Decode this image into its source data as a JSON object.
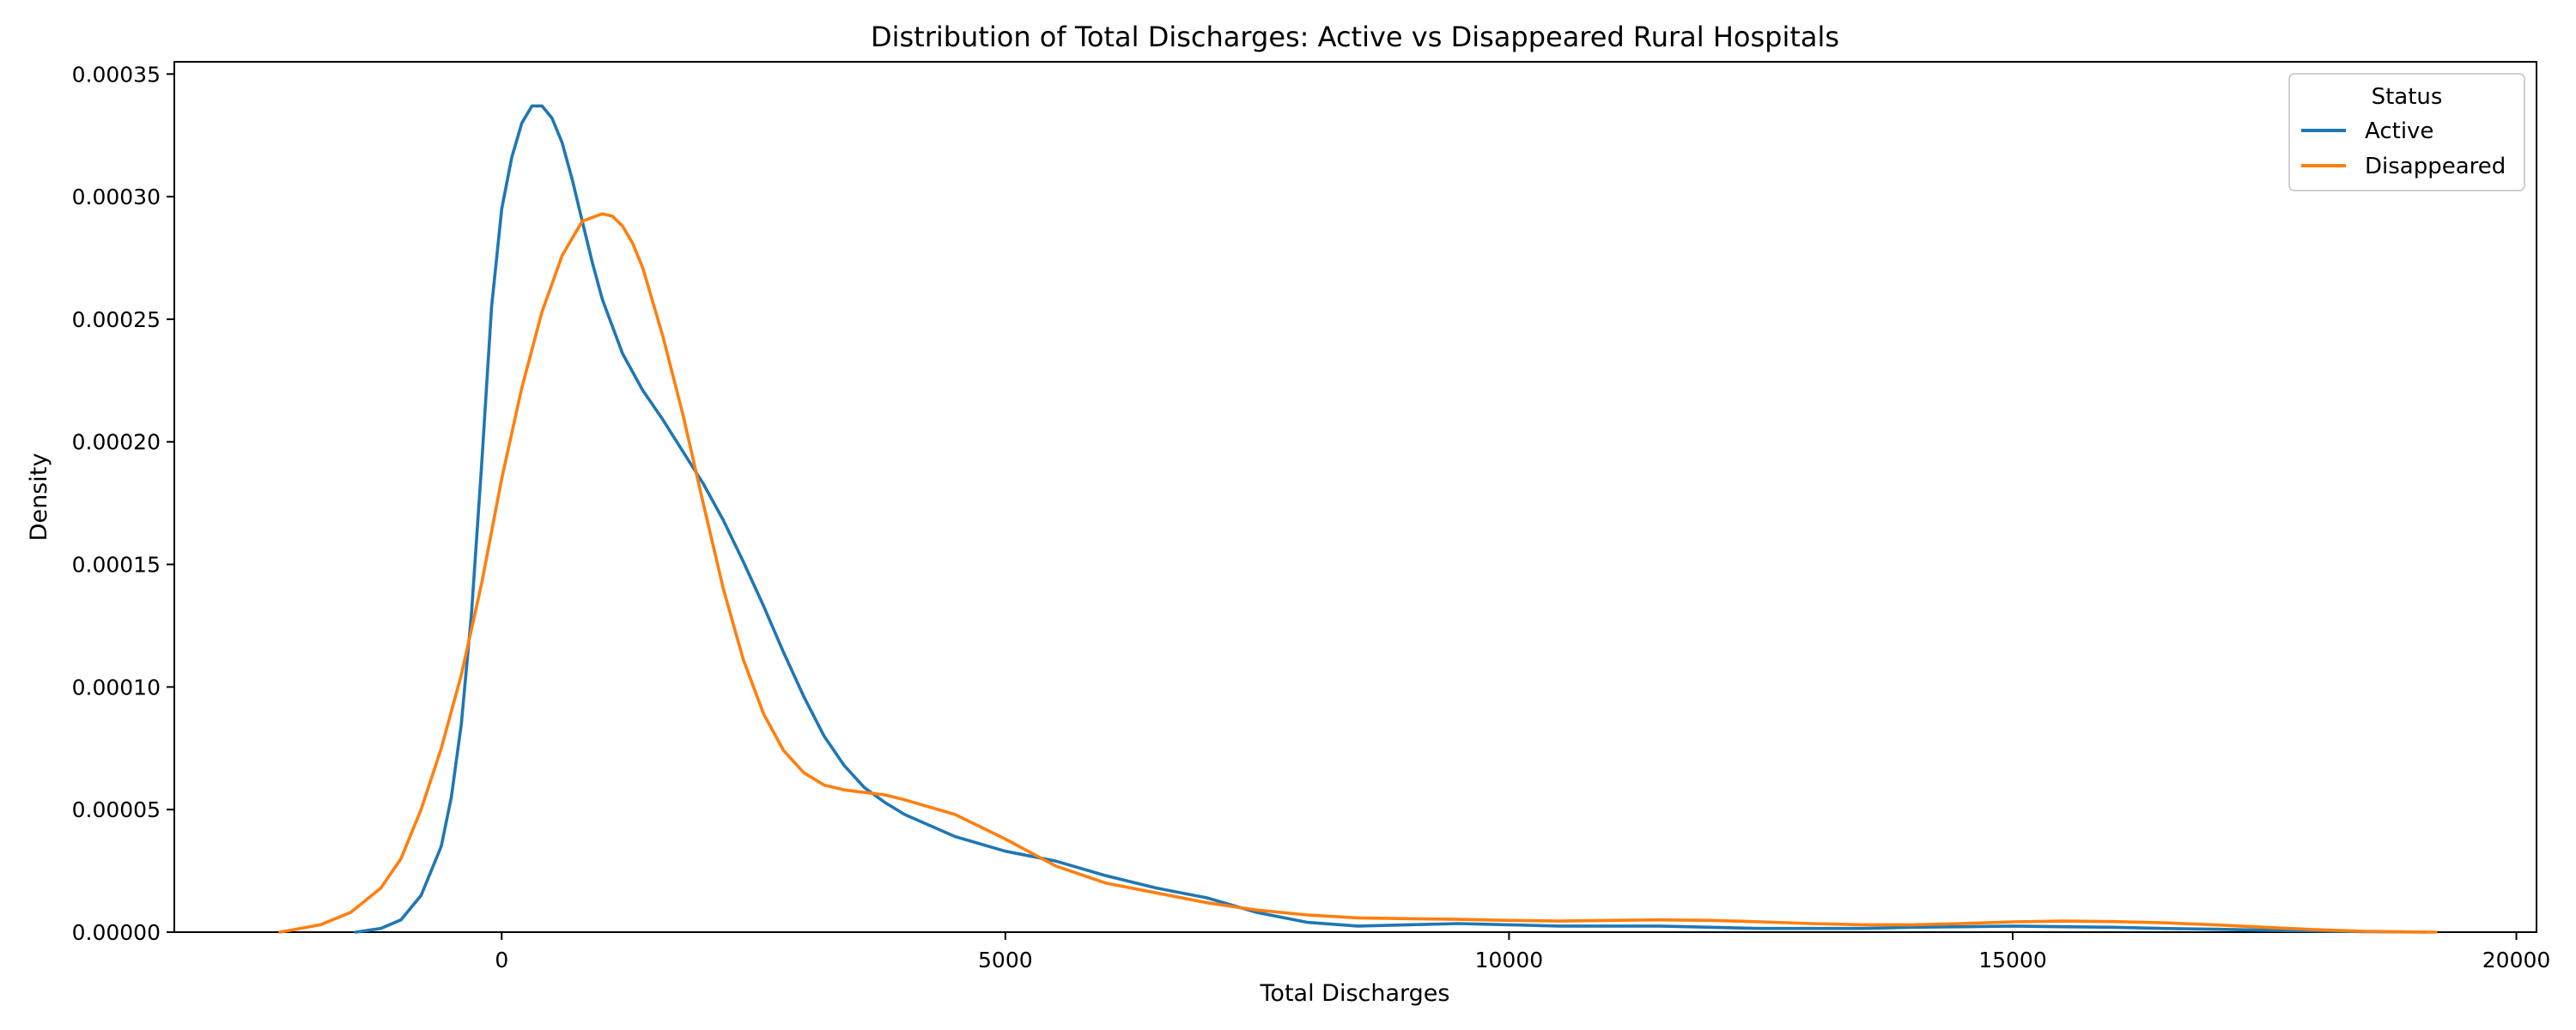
{
  "chart_data": {
    "type": "line",
    "title": "Distribution of Total Discharges: Active vs Disappeared Rural Hospitals",
    "xlabel": "Total Discharges",
    "ylabel": "Density",
    "xlim": [
      -3250,
      20200
    ],
    "ylim": [
      0,
      0.000355
    ],
    "xticks": [
      0,
      5000,
      10000,
      15000,
      20000
    ],
    "xtick_labels": [
      "0",
      "5000",
      "10000",
      "15000",
      "20000"
    ],
    "yticks": [
      0,
      5e-05,
      0.0001,
      0.00015,
      0.0002,
      0.00025,
      0.0003,
      0.00035
    ],
    "ytick_labels": [
      "0.00000",
      "0.00005",
      "0.00010",
      "0.00015",
      "0.00020",
      "0.00025",
      "0.00030",
      "0.00035"
    ],
    "grid": false,
    "legend": {
      "title": "Status",
      "position": "top-right"
    },
    "series": [
      {
        "name": "Active",
        "color": "#1f77b4",
        "x": [
          -1450,
          -1200,
          -1000,
          -800,
          -600,
          -500,
          -400,
          -300,
          -200,
          -100,
          0,
          100,
          200,
          300,
          400,
          500,
          600,
          700,
          800,
          900,
          1000,
          1200,
          1400,
          1600,
          1800,
          2000,
          2200,
          2400,
          2600,
          2800,
          3000,
          3200,
          3400,
          3600,
          3800,
          4000,
          4500,
          5000,
          5500,
          6000,
          6500,
          7000,
          7500,
          8000,
          8500,
          9000,
          9500,
          10000,
          10500,
          11000,
          11500,
          12000,
          12500,
          13000,
          13500,
          14000,
          14500,
          15000,
          15500,
          16000,
          16500,
          17000,
          17500,
          18000,
          18500,
          19100
        ],
        "y": [
          0,
          1.5e-06,
          5e-06,
          1.5e-05,
          3.5e-05,
          5.5e-05,
          8.5e-05,
          0.00013,
          0.00019,
          0.000255,
          0.000295,
          0.000316,
          0.00033,
          0.000337,
          0.000337,
          0.000332,
          0.000322,
          0.000307,
          0.00029,
          0.000273,
          0.000258,
          0.000236,
          0.000221,
          0.000209,
          0.000196,
          0.000183,
          0.000168,
          0.000151,
          0.000133,
          0.000114,
          9.6e-05,
          8e-05,
          6.8e-05,
          5.9e-05,
          5.3e-05,
          4.8e-05,
          3.9e-05,
          3.3e-05,
          2.9e-05,
          2.3e-05,
          1.8e-05,
          1.4e-05,
          8e-06,
          4e-06,
          2.5e-06,
          3e-06,
          3.5e-06,
          3e-06,
          2.5e-06,
          2.5e-06,
          2.5e-06,
          2e-06,
          1.5e-06,
          1.5e-06,
          1.5e-06,
          2e-06,
          2.2e-06,
          2.5e-06,
          2.2e-06,
          2e-06,
          1.5e-06,
          1.2e-06,
          8e-07,
          5e-07,
          2e-07,
          0
        ]
      },
      {
        "name": "Disappeared",
        "color": "#ff7f0e",
        "x": [
          -2200,
          -1800,
          -1500,
          -1200,
          -1000,
          -800,
          -600,
          -400,
          -200,
          0,
          200,
          400,
          600,
          800,
          1000,
          1100,
          1200,
          1300,
          1400,
          1600,
          1800,
          2000,
          2200,
          2400,
          2600,
          2800,
          3000,
          3200,
          3400,
          3600,
          3800,
          4000,
          4500,
          5000,
          5500,
          6000,
          6500,
          7000,
          7500,
          8000,
          8500,
          9000,
          9500,
          10000,
          10500,
          11000,
          11500,
          12000,
          12500,
          13000,
          13500,
          14000,
          14500,
          15000,
          15500,
          16000,
          16500,
          17000,
          17500,
          18000,
          18500,
          19200
        ],
        "y": [
          0,
          3e-06,
          8e-06,
          1.8e-05,
          3e-05,
          5e-05,
          7.5e-05,
          0.000105,
          0.000142,
          0.000185,
          0.000222,
          0.000253,
          0.000276,
          0.00029,
          0.000293,
          0.000292,
          0.000288,
          0.000281,
          0.000271,
          0.000243,
          0.000211,
          0.000175,
          0.00014,
          0.000111,
          8.9e-05,
          7.4e-05,
          6.5e-05,
          6e-05,
          5.8e-05,
          5.7e-05,
          5.6e-05,
          5.4e-05,
          4.8e-05,
          3.8e-05,
          2.7e-05,
          2e-05,
          1.6e-05,
          1.2e-05,
          9e-06,
          7e-06,
          5.8e-06,
          5.5e-06,
          5.2e-06,
          4.8e-06,
          4.5e-06,
          4.8e-06,
          5e-06,
          4.8e-06,
          4.2e-06,
          3.5e-06,
          3e-06,
          3e-06,
          3.5e-06,
          4.2e-06,
          4.5e-06,
          4.3e-06,
          3.8e-06,
          3e-06,
          2e-06,
          1e-06,
          3e-07,
          0
        ]
      }
    ]
  }
}
